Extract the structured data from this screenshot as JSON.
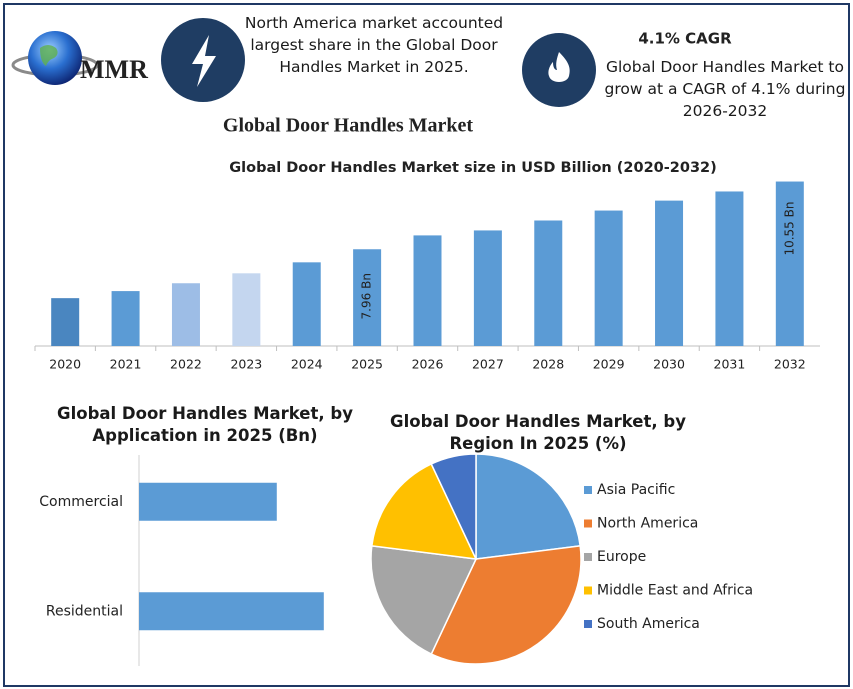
{
  "header": {
    "logo": "MMR",
    "highlight": "North America market accounted largest share in the Global Door Handles Market in 2025.",
    "cagr_title": "4.1% CAGR",
    "cagr_text": "Global Door Handles Market to grow at a CAGR of 4.1% during 2026-2032",
    "title": "Global Door Handles Market"
  },
  "chart_data": [
    {
      "type": "bar",
      "title": "Global Door Handles Market size in USD Billion (2020-2032)",
      "categories": [
        "2020",
        "2021",
        "2022",
        "2023",
        "2024",
        "2025",
        "2026",
        "2027",
        "2028",
        "2029",
        "2030",
        "2031",
        "2032"
      ],
      "values": [
        6.09,
        6.36,
        6.66,
        7.04,
        7.46,
        7.96,
        8.49,
        8.68,
        9.06,
        9.44,
        9.82,
        10.17,
        10.55
      ],
      "value_labels": [
        null,
        null,
        null,
        null,
        null,
        "7.96 Bn",
        null,
        null,
        null,
        null,
        null,
        null,
        "10.55 Bn"
      ],
      "colors": [
        "#4a86c0",
        "#5b9bd5",
        "#9dbde6",
        "#c4d6ef",
        "#5b9bd5",
        "#5b9bd5",
        "#5b9bd5",
        "#5b9bd5",
        "#5b9bd5",
        "#5b9bd5",
        "#5b9bd5",
        "#5b9bd5",
        "#5b9bd5"
      ],
      "ylim": [
        4.26,
        10.8
      ]
    },
    {
      "type": "hbar",
      "title": "Global Door Handles Market, by Application in 2025 (Bn)",
      "categories": [
        "Commercial",
        "Residential"
      ],
      "values": [
        3.4,
        4.56
      ],
      "color": "#5b9bd5",
      "xlim": [
        0,
        5.7
      ]
    },
    {
      "type": "pie",
      "title": "Global Door Handles Market, by Region In 2025 (%)",
      "categories": [
        "Asia Pacific",
        "North America",
        "Europe",
        "Middle East and Africa",
        "South America"
      ],
      "values": [
        23,
        34,
        20,
        16,
        7
      ],
      "colors": [
        "#5b9bd5",
        "#ed7d31",
        "#a5a5a5",
        "#ffc000",
        "#4472c4"
      ],
      "legend": "right"
    }
  ]
}
